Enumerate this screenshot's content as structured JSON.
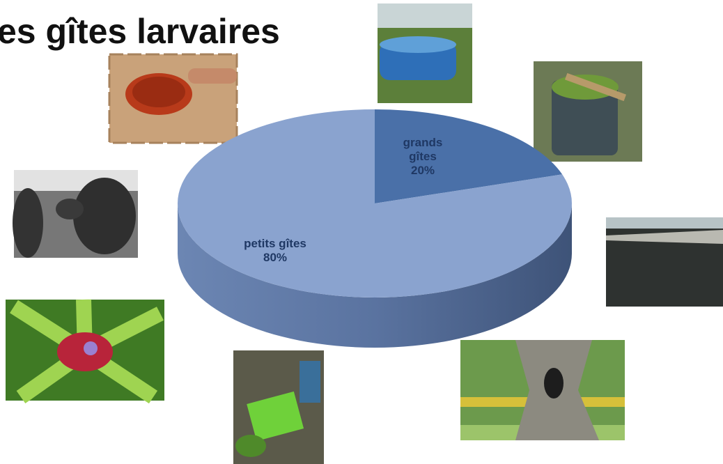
{
  "title": "es gîtes larvaires",
  "chart_data": {
    "type": "pie",
    "categories": [
      "grands gîtes",
      "petits gîtes"
    ],
    "values": [
      20,
      80
    ],
    "value_labels": [
      "20%",
      "80%"
    ],
    "colors": [
      "#4a70a8",
      "#8aa3cf"
    ]
  }
}
